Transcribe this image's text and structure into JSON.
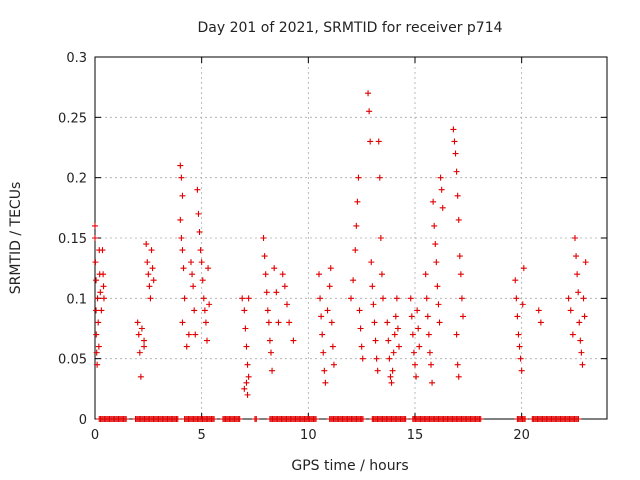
{
  "chart_data": {
    "type": "scatter",
    "title": "Day 201 of 2021, SRMTID for receiver p714",
    "xlabel": "GPS time / hours",
    "ylabel": "SRMTID / TECUs",
    "xlim": [
      0,
      24
    ],
    "ylim": [
      0,
      0.3
    ],
    "xticks": [
      0,
      5,
      10,
      15,
      20
    ],
    "xtick_labels": [
      "0",
      "5",
      "10",
      "15",
      "20"
    ],
    "yticks": [
      0,
      0.05,
      0.1,
      0.15,
      0.2,
      0.25,
      0.3
    ],
    "ytick_labels": [
      "0",
      "0.05",
      "0.1",
      "0.15",
      "0.2",
      "0.25",
      "0.3"
    ],
    "grid": true,
    "marker": "+",
    "color": "#e00000",
    "series": [
      {
        "name": "SRMTID",
        "points": [
          [
            0.0,
            0.16
          ],
          [
            0.0,
            0.15
          ],
          [
            0.02,
            0.13
          ],
          [
            0.05,
            0.115
          ],
          [
            0.05,
            0.09
          ],
          [
            0.06,
            0.07
          ],
          [
            0.08,
            0.055
          ],
          [
            0.1,
            0.045
          ],
          [
            0.12,
            0.1
          ],
          [
            0.15,
            0.08
          ],
          [
            0.18,
            0.06
          ],
          [
            0.2,
            0.14
          ],
          [
            0.22,
            0.12
          ],
          [
            0.25,
            0.105
          ],
          [
            0.3,
            0.09
          ],
          [
            0.35,
            0.14
          ],
          [
            0.38,
            0.12
          ],
          [
            0.4,
            0.11
          ],
          [
            0.42,
            0.1
          ],
          [
            2.0,
            0.08
          ],
          [
            2.05,
            0.07
          ],
          [
            2.1,
            0.055
          ],
          [
            2.15,
            0.035
          ],
          [
            2.2,
            0.075
          ],
          [
            2.3,
            0.065
          ],
          [
            2.4,
            0.145
          ],
          [
            2.45,
            0.13
          ],
          [
            2.5,
            0.12
          ],
          [
            2.55,
            0.11
          ],
          [
            2.6,
            0.1
          ],
          [
            2.65,
            0.14
          ],
          [
            2.7,
            0.125
          ],
          [
            2.75,
            0.115
          ],
          [
            2.3,
            0.06
          ],
          [
            4.0,
            0.21
          ],
          [
            4.05,
            0.2
          ],
          [
            4.1,
            0.185
          ],
          [
            4.0,
            0.165
          ],
          [
            4.05,
            0.15
          ],
          [
            4.1,
            0.14
          ],
          [
            4.15,
            0.125
          ],
          [
            4.2,
            0.1
          ],
          [
            4.1,
            0.08
          ],
          [
            4.3,
            0.06
          ],
          [
            4.4,
            0.07
          ],
          [
            4.5,
            0.13
          ],
          [
            4.55,
            0.12
          ],
          [
            4.6,
            0.11
          ],
          [
            4.65,
            0.09
          ],
          [
            4.7,
            0.07
          ],
          [
            4.8,
            0.19
          ],
          [
            4.85,
            0.17
          ],
          [
            4.9,
            0.155
          ],
          [
            4.95,
            0.14
          ],
          [
            5.0,
            0.13
          ],
          [
            5.05,
            0.115
          ],
          [
            5.1,
            0.1
          ],
          [
            5.15,
            0.09
          ],
          [
            5.2,
            0.08
          ],
          [
            5.25,
            0.065
          ],
          [
            5.3,
            0.125
          ],
          [
            5.35,
            0.095
          ],
          [
            6.9,
            0.1
          ],
          [
            7.0,
            0.09
          ],
          [
            7.05,
            0.075
          ],
          [
            7.1,
            0.06
          ],
          [
            7.15,
            0.045
          ],
          [
            7.2,
            0.035
          ],
          [
            7.0,
            0.025
          ],
          [
            7.1,
            0.03
          ],
          [
            7.15,
            0.02
          ],
          [
            7.2,
            0.1
          ],
          [
            7.9,
            0.15
          ],
          [
            7.95,
            0.135
          ],
          [
            8.0,
            0.12
          ],
          [
            8.05,
            0.105
          ],
          [
            8.1,
            0.09
          ],
          [
            8.15,
            0.08
          ],
          [
            8.2,
            0.065
          ],
          [
            8.25,
            0.055
          ],
          [
            8.3,
            0.04
          ],
          [
            8.4,
            0.125
          ],
          [
            8.5,
            0.105
          ],
          [
            8.6,
            0.08
          ],
          [
            8.8,
            0.12
          ],
          [
            8.9,
            0.11
          ],
          [
            9.0,
            0.095
          ],
          [
            9.1,
            0.08
          ],
          [
            9.3,
            0.065
          ],
          [
            10.5,
            0.12
          ],
          [
            10.55,
            0.1
          ],
          [
            10.6,
            0.085
          ],
          [
            10.65,
            0.07
          ],
          [
            10.7,
            0.055
          ],
          [
            10.75,
            0.04
          ],
          [
            10.8,
            0.03
          ],
          [
            10.9,
            0.09
          ],
          [
            11.0,
            0.11
          ],
          [
            11.05,
            0.125
          ],
          [
            11.1,
            0.08
          ],
          [
            11.15,
            0.06
          ],
          [
            11.2,
            0.045
          ],
          [
            12.0,
            0.1
          ],
          [
            12.1,
            0.115
          ],
          [
            12.2,
            0.14
          ],
          [
            12.25,
            0.16
          ],
          [
            12.3,
            0.18
          ],
          [
            12.35,
            0.2
          ],
          [
            12.4,
            0.09
          ],
          [
            12.45,
            0.075
          ],
          [
            12.5,
            0.06
          ],
          [
            12.55,
            0.05
          ],
          [
            12.8,
            0.27
          ],
          [
            12.85,
            0.255
          ],
          [
            12.9,
            0.23
          ],
          [
            12.95,
            0.13
          ],
          [
            13.0,
            0.11
          ],
          [
            13.05,
            0.095
          ],
          [
            13.1,
            0.08
          ],
          [
            13.15,
            0.065
          ],
          [
            13.2,
            0.05
          ],
          [
            13.25,
            0.04
          ],
          [
            13.3,
            0.23
          ],
          [
            13.35,
            0.2
          ],
          [
            13.4,
            0.15
          ],
          [
            13.45,
            0.12
          ],
          [
            13.5,
            0.1
          ],
          [
            13.7,
            0.08
          ],
          [
            13.75,
            0.065
          ],
          [
            13.8,
            0.05
          ],
          [
            13.85,
            0.035
          ],
          [
            13.9,
            0.03
          ],
          [
            13.95,
            0.04
          ],
          [
            14.0,
            0.055
          ],
          [
            14.05,
            0.07
          ],
          [
            14.1,
            0.085
          ],
          [
            14.15,
            0.1
          ],
          [
            14.2,
            0.075
          ],
          [
            14.25,
            0.06
          ],
          [
            14.8,
            0.1
          ],
          [
            14.85,
            0.085
          ],
          [
            14.9,
            0.07
          ],
          [
            14.95,
            0.055
          ],
          [
            15.0,
            0.045
          ],
          [
            15.05,
            0.035
          ],
          [
            15.1,
            0.09
          ],
          [
            15.15,
            0.075
          ],
          [
            15.2,
            0.06
          ],
          [
            15.5,
            0.12
          ],
          [
            15.55,
            0.1
          ],
          [
            15.6,
            0.085
          ],
          [
            15.65,
            0.07
          ],
          [
            15.7,
            0.055
          ],
          [
            15.75,
            0.045
          ],
          [
            15.8,
            0.03
          ],
          [
            15.85,
            0.18
          ],
          [
            15.9,
            0.16
          ],
          [
            15.95,
            0.145
          ],
          [
            16.0,
            0.13
          ],
          [
            16.05,
            0.11
          ],
          [
            16.1,
            0.095
          ],
          [
            16.15,
            0.08
          ],
          [
            16.2,
            0.2
          ],
          [
            16.25,
            0.19
          ],
          [
            16.3,
            0.175
          ],
          [
            16.8,
            0.24
          ],
          [
            16.85,
            0.23
          ],
          [
            16.9,
            0.22
          ],
          [
            16.95,
            0.205
          ],
          [
            17.0,
            0.185
          ],
          [
            17.05,
            0.165
          ],
          [
            17.1,
            0.135
          ],
          [
            17.15,
            0.12
          ],
          [
            17.2,
            0.1
          ],
          [
            17.25,
            0.085
          ],
          [
            16.95,
            0.07
          ],
          [
            17.0,
            0.045
          ],
          [
            17.05,
            0.035
          ],
          [
            19.7,
            0.115
          ],
          [
            19.75,
            0.1
          ],
          [
            19.8,
            0.085
          ],
          [
            19.85,
            0.07
          ],
          [
            19.9,
            0.06
          ],
          [
            19.95,
            0.05
          ],
          [
            20.0,
            0.04
          ],
          [
            20.05,
            0.095
          ],
          [
            20.1,
            0.125
          ],
          [
            20.8,
            0.09
          ],
          [
            20.9,
            0.08
          ],
          [
            22.2,
            0.1
          ],
          [
            22.3,
            0.09
          ],
          [
            22.4,
            0.07
          ],
          [
            22.5,
            0.15
          ],
          [
            22.55,
            0.135
          ],
          [
            22.6,
            0.12
          ],
          [
            22.65,
            0.105
          ],
          [
            22.7,
            0.08
          ],
          [
            22.75,
            0.065
          ],
          [
            22.8,
            0.055
          ],
          [
            22.85,
            0.045
          ],
          [
            22.9,
            0.1
          ],
          [
            22.95,
            0.085
          ],
          [
            23.0,
            0.13
          ]
        ],
        "zero_runs": [
          [
            0.2,
            1.5
          ],
          [
            1.9,
            3.9
          ],
          [
            4.2,
            5.6
          ],
          [
            6.0,
            6.8
          ],
          [
            7.5,
            7.6
          ],
          [
            8.2,
            10.4
          ],
          [
            11.0,
            12.6
          ],
          [
            13.0,
            14.6
          ],
          [
            14.9,
            18.1
          ],
          [
            19.8,
            20.2
          ],
          [
            20.5,
            22.7
          ]
        ]
      }
    ]
  }
}
